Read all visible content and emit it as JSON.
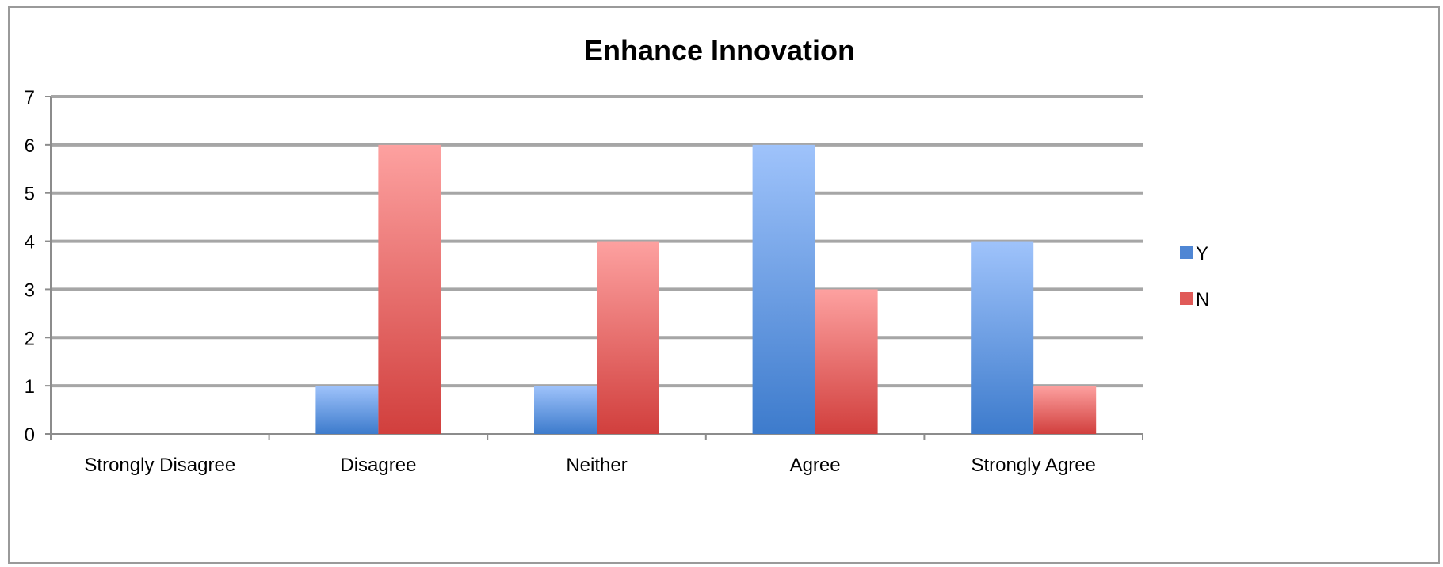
{
  "chart_data": {
    "type": "bar",
    "title": "Enhance Innovation",
    "xlabel": "",
    "ylabel": "",
    "categories": [
      "Strongly Disagree",
      "Disagree",
      "Neither",
      "Agree",
      "Strongly Agree"
    ],
    "series": [
      {
        "name": "Y",
        "values": [
          0,
          1,
          1,
          6,
          4
        ],
        "color": "#4f86d4"
      },
      {
        "name": "N",
        "values": [
          0,
          6,
          4,
          3,
          1
        ],
        "color": "#e05a58"
      }
    ],
    "ylim": [
      0,
      7
    ],
    "yticks": [
      0,
      1,
      2,
      3,
      4,
      5,
      6,
      7
    ],
    "grid": true,
    "legend_position": "right"
  }
}
